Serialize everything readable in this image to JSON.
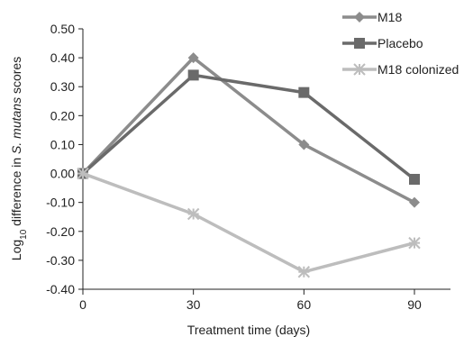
{
  "chart_data": {
    "type": "line",
    "xlabel": "Treatment time (days)",
    "ylabel_prefix": "Log",
    "ylabel_sub": "10",
    "ylabel_mid": " difference in ",
    "ylabel_italic": "S. mutans",
    "ylabel_suffix": " scores",
    "x": [
      0,
      30,
      60,
      90
    ],
    "x_ticks": [
      "0",
      "30",
      "60",
      "90"
    ],
    "xlim": [
      0,
      90
    ],
    "ylim": [
      -0.4,
      0.5
    ],
    "y_ticks": [
      "0.50",
      "0.40",
      "0.30",
      "0.20",
      "0.10",
      "0.00",
      "-0.10",
      "-0.20",
      "-0.30",
      "-0.40"
    ],
    "grid": false,
    "legend_position": "top-right",
    "series": [
      {
        "name": "M18",
        "values": [
          0.0,
          0.4,
          0.1,
          -0.1
        ],
        "color": "#8c8c8c",
        "marker": "diamond"
      },
      {
        "name": "Placebo",
        "values": [
          0.0,
          0.34,
          0.28,
          -0.02
        ],
        "color": "#6a6a6a",
        "marker": "square"
      },
      {
        "name": "M18 colonized",
        "values": [
          0.0,
          -0.14,
          -0.34,
          -0.24
        ],
        "color": "#bdbdbd",
        "marker": "asterisk"
      }
    ]
  }
}
